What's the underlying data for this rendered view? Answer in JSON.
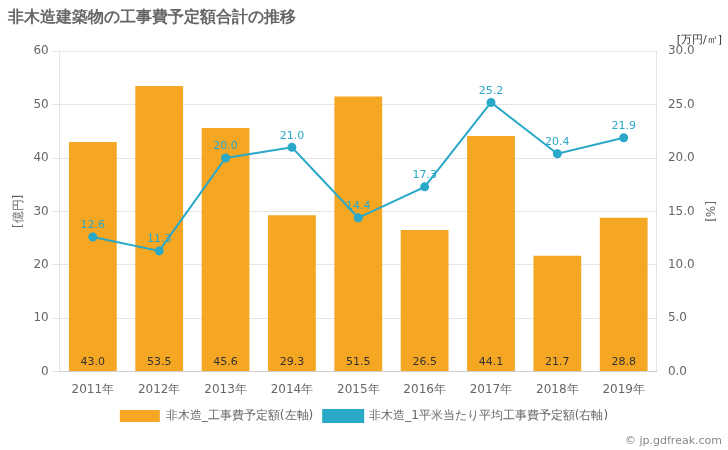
{
  "chart_data": {
    "type": "bar",
    "title": "非木造建築物の工事費予定額合計の推移",
    "categories": [
      "2011年",
      "2012年",
      "2013年",
      "2014年",
      "2015年",
      "2016年",
      "2017年",
      "2018年",
      "2019年"
    ],
    "series": [
      {
        "name": "非木造_工事費予定額(左軸)",
        "type": "bar",
        "color": "#F5A623",
        "values": [
          43.0,
          53.5,
          45.6,
          29.3,
          51.5,
          26.5,
          44.1,
          21.7,
          28.8
        ],
        "value_labels": [
          "43.0",
          "53.5",
          "45.6",
          "29.3",
          "51.5",
          "26.5",
          "44.1",
          "21.7",
          "28.8"
        ]
      },
      {
        "name": "非木造_1平米当たり平均工事費予定額(右軸)",
        "type": "line",
        "color": "#29A8C8",
        "marker": "circle",
        "axis": "y2",
        "values": [
          12.6,
          11.3,
          20.0,
          21.0,
          14.4,
          17.3,
          25.2,
          20.4,
          21.9
        ],
        "value_labels": [
          "12.6",
          "11.3",
          "20.0",
          "21.0",
          "14.4",
          "17.3",
          "25.2",
          "20.4",
          "21.9"
        ]
      }
    ],
    "ylabel": "[億円]",
    "y2label": "[%]",
    "annotations": [
      "[万円/㎡]",
      "© jp.gdfreak.com"
    ],
    "ylim": [
      0,
      60
    ],
    "yticks": [
      0,
      10,
      20,
      30,
      40,
      50,
      60
    ],
    "y2lim": [
      0,
      30
    ],
    "y2ticks": [
      {
        "value": 0,
        "label": "0.0"
      },
      {
        "value": 5,
        "label": "5.0"
      },
      {
        "value": 10,
        "label": "10.0"
      },
      {
        "value": 15,
        "label": "15.0"
      },
      {
        "value": 20,
        "label": "20.0"
      },
      {
        "value": 25,
        "label": "25.0"
      },
      {
        "value": 30,
        "label": "30.0"
      }
    ],
    "grid": true,
    "legend": "bottom",
    "data_labels": true
  }
}
